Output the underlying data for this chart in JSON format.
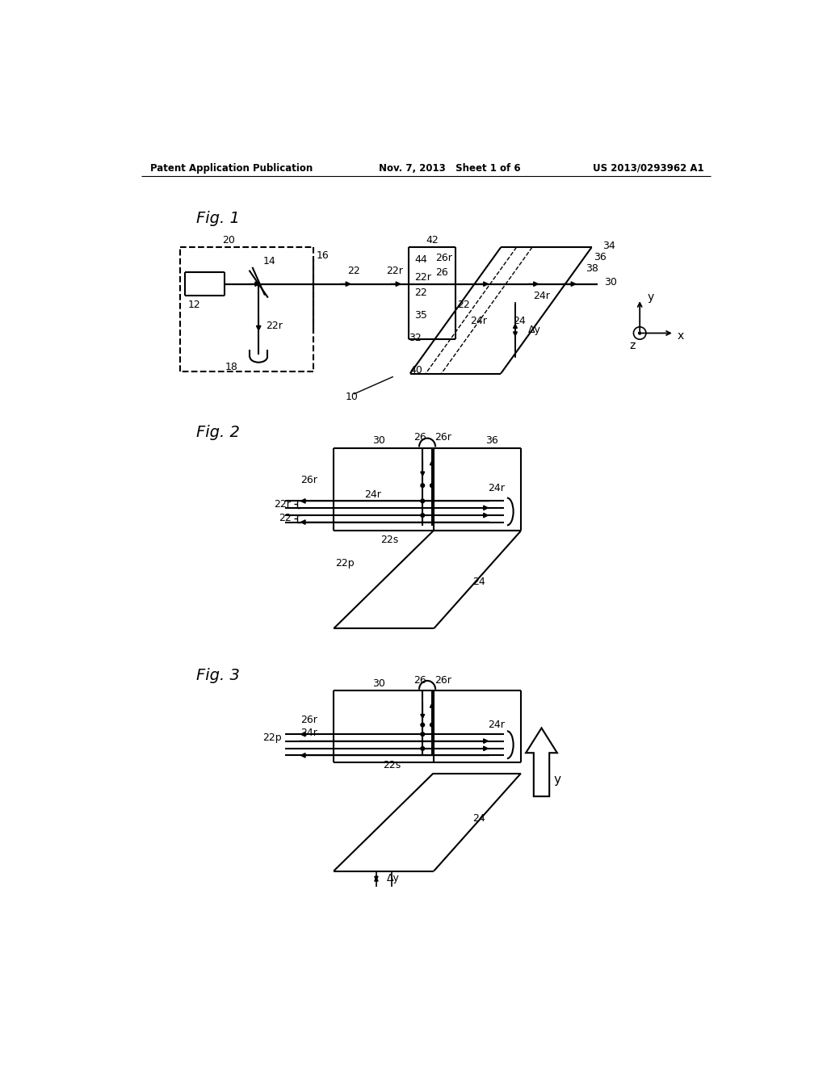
{
  "bg_color": "#ffffff",
  "header_left": "Patent Application Publication",
  "header_mid": "Nov. 7, 2013   Sheet 1 of 6",
  "header_right": "US 2013/0293962 A1",
  "line_color": "#000000",
  "text_color": "#000000"
}
